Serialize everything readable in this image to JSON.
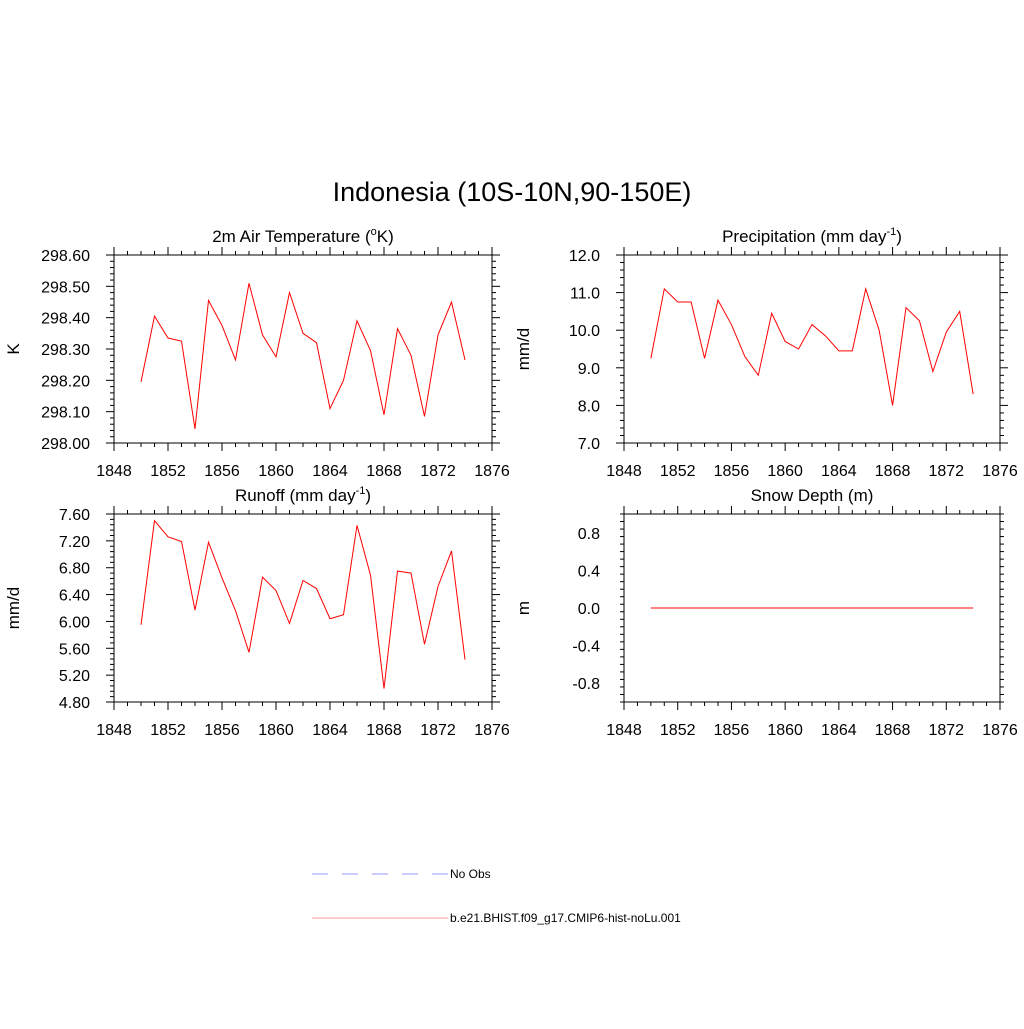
{
  "title": "Indonesia (10S-10N,90-150E)",
  "colors": {
    "model": "#ff0000",
    "obs": "#9999ff",
    "axis": "#000000"
  },
  "legend": {
    "items": [
      {
        "label": "No Obs",
        "style": "dashed",
        "color": "#9999ff"
      },
      {
        "label": "b.e21.BHIST.f09_g17.CMIP6-hist-noLu.001",
        "style": "solid",
        "color": "#ff0000"
      }
    ]
  },
  "chart_data": [
    {
      "type": "line",
      "title": "2m Air Temperature (",
      "title_sup": "o",
      "title_after": "K)",
      "ylabel": "K",
      "xlim": [
        1848,
        1876
      ],
      "ylim": [
        298.0,
        298.6
      ],
      "xticks": [
        "1848",
        "1852",
        "1856",
        "1860",
        "1864",
        "1868",
        "1872",
        "1876"
      ],
      "yticks": [
        "298.00",
        "298.10",
        "298.20",
        "298.30",
        "298.40",
        "298.50",
        "298.60"
      ],
      "x": [
        1850,
        1851,
        1852,
        1853,
        1854,
        1855,
        1856,
        1857,
        1858,
        1859,
        1860,
        1861,
        1862,
        1863,
        1864,
        1865,
        1866,
        1867,
        1868,
        1869,
        1870,
        1871,
        1872,
        1873,
        1874
      ],
      "series": [
        {
          "name": "b.e21.BHIST.f09_g17.CMIP6-hist-noLu.001",
          "values": [
            298.195,
            298.405,
            298.335,
            298.325,
            298.045,
            298.455,
            298.375,
            298.265,
            298.51,
            298.345,
            298.275,
            298.48,
            298.35,
            298.32,
            298.11,
            298.2,
            298.39,
            298.295,
            298.09,
            298.365,
            298.28,
            298.085,
            298.345,
            298.45,
            298.265
          ]
        }
      ]
    },
    {
      "type": "line",
      "title": "Precipitation (mm day",
      "title_sup": "-1",
      "title_after": ")",
      "ylabel": "mm/d",
      "xlim": [
        1848,
        1876
      ],
      "ylim": [
        7.0,
        12.0
      ],
      "xticks": [
        "1848",
        "1852",
        "1856",
        "1860",
        "1864",
        "1868",
        "1872",
        "1876"
      ],
      "yticks": [
        "7.0",
        "8.0",
        "9.0",
        "10.0",
        "11.0",
        "12.0"
      ],
      "x": [
        1850,
        1851,
        1852,
        1853,
        1854,
        1855,
        1856,
        1857,
        1858,
        1859,
        1860,
        1861,
        1862,
        1863,
        1864,
        1865,
        1866,
        1867,
        1868,
        1869,
        1870,
        1871,
        1872,
        1873,
        1874
      ],
      "series": [
        {
          "name": "b.e21.BHIST.f09_g17.CMIP6-hist-noLu.001",
          "values": [
            9.25,
            11.1,
            10.75,
            10.75,
            9.25,
            10.8,
            10.15,
            9.3,
            8.8,
            10.45,
            9.7,
            9.5,
            10.15,
            9.85,
            9.45,
            9.45,
            11.1,
            10.0,
            8.0,
            10.6,
            10.25,
            8.9,
            9.95,
            10.5,
            8.3
          ]
        }
      ]
    },
    {
      "type": "line",
      "title": "Runoff (mm day",
      "title_sup": "-1",
      "title_after": ")",
      "ylabel": "mm/d",
      "xlim": [
        1848,
        1876
      ],
      "ylim": [
        4.8,
        7.6
      ],
      "xticks": [
        "1848",
        "1852",
        "1856",
        "1860",
        "1864",
        "1868",
        "1872",
        "1876"
      ],
      "yticks": [
        "4.80",
        "5.20",
        "5.60",
        "6.00",
        "6.40",
        "6.80",
        "7.20",
        "7.60"
      ],
      "x": [
        1850,
        1851,
        1852,
        1853,
        1854,
        1855,
        1856,
        1857,
        1858,
        1859,
        1860,
        1861,
        1862,
        1863,
        1864,
        1865,
        1866,
        1867,
        1868,
        1869,
        1870,
        1871,
        1872,
        1873,
        1874
      ],
      "series": [
        {
          "name": "b.e21.BHIST.f09_g17.CMIP6-hist-noLu.001",
          "values": [
            5.95,
            7.5,
            7.26,
            7.19,
            6.17,
            7.18,
            6.65,
            6.16,
            5.54,
            6.66,
            6.46,
            5.97,
            6.61,
            6.49,
            6.04,
            6.1,
            7.43,
            6.69,
            5.0,
            6.75,
            6.72,
            5.66,
            6.52,
            7.05,
            5.43
          ]
        }
      ]
    },
    {
      "type": "line",
      "title": "Snow Depth (m)",
      "title_sup": "",
      "title_after": "",
      "ylabel": "m",
      "xlim": [
        1848,
        1876
      ],
      "ylim": [
        -1.0,
        1.0
      ],
      "xticks": [
        "1848",
        "1852",
        "1856",
        "1860",
        "1864",
        "1868",
        "1872",
        "1876"
      ],
      "yticks": [
        "-0.8",
        "-0.4",
        "0.0",
        "0.4",
        "0.8"
      ],
      "ytick_values": [
        -0.8,
        -0.4,
        0.0,
        0.4,
        0.8
      ],
      "x": [
        1850,
        1851,
        1852,
        1853,
        1854,
        1855,
        1856,
        1857,
        1858,
        1859,
        1860,
        1861,
        1862,
        1863,
        1864,
        1865,
        1866,
        1867,
        1868,
        1869,
        1870,
        1871,
        1872,
        1873,
        1874
      ],
      "series": [
        {
          "name": "b.e21.BHIST.f09_g17.CMIP6-hist-noLu.001",
          "values": [
            0,
            0,
            0,
            0,
            0,
            0,
            0,
            0,
            0,
            0,
            0,
            0,
            0,
            0,
            0,
            0,
            0,
            0,
            0,
            0,
            0,
            0,
            0,
            0,
            0
          ]
        }
      ]
    }
  ]
}
